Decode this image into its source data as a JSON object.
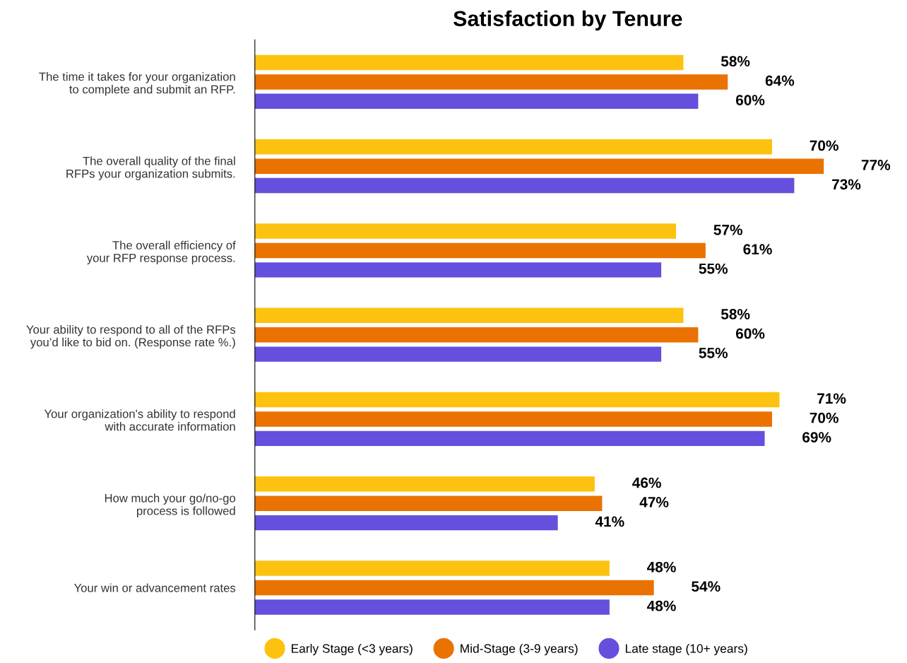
{
  "chart_data": {
    "type": "bar",
    "orientation": "horizontal",
    "title": "Satisfaction by Tenure",
    "categories": [
      "The time it takes for your organization\nto complete and submit an RFP.",
      "The overall quality of the final\nRFPs your organization submits.",
      "The overall efficiency of\nyour RFP response process.",
      "Your ability to respond to all of the RFPs\nyou’d like to bid on. (Response rate %.)",
      "Your organization's ability to respond\nwith accurate information",
      "How much your go/no-go\nprocess is followed",
      "Your win or advancement rates"
    ],
    "series": [
      {
        "name": "Early Stage (<3 years)",
        "color": "#fdc210",
        "values": [
          58,
          70,
          57,
          58,
          71,
          46,
          48
        ],
        "value_labels": [
          "58%",
          "70%",
          "57%",
          "58%",
          "71%",
          "46%",
          "48%"
        ]
      },
      {
        "name": "Mid-Stage (3-9 years)",
        "color": "#ea7200",
        "values": [
          64,
          77,
          61,
          60,
          70,
          47,
          54
        ],
        "value_labels": [
          "64%",
          "77%",
          "61%",
          "60%",
          "70%",
          "47%",
          "54%"
        ]
      },
      {
        "name": "Late stage (10+ years)",
        "color": "#6450dc",
        "values": [
          60,
          73,
          55,
          55,
          69,
          41,
          48
        ],
        "value_labels": [
          "60%",
          "73%",
          "55%",
          "55%",
          "69%",
          "41%",
          "48%"
        ]
      }
    ],
    "tick_labels": "y",
    "legend": "bottom",
    "grid": false
  }
}
